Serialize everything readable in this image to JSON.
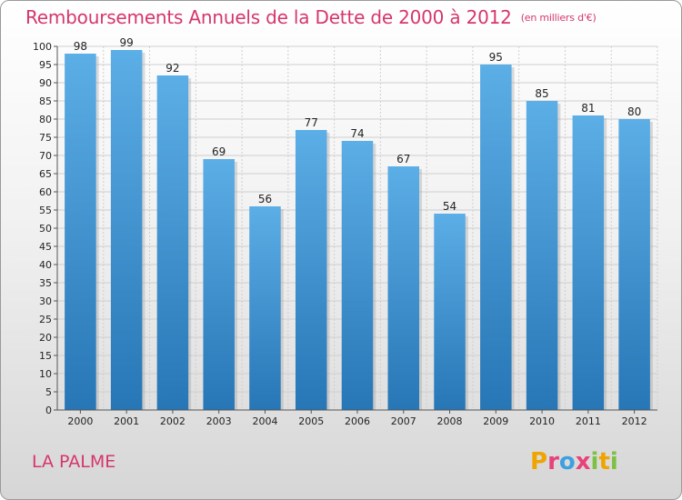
{
  "header": {
    "title": "Remboursements Annuels de la Dette de 2000 à 2012",
    "unit": "(en milliers d'€)"
  },
  "footer": {
    "commune": "LA PALME",
    "logo": [
      {
        "ch": "P",
        "color": "#f0a400"
      },
      {
        "ch": "r",
        "color": "#e8417c"
      },
      {
        "ch": "o",
        "color": "#3ea0e0"
      },
      {
        "ch": "x",
        "color": "#e8417c"
      },
      {
        "ch": "i",
        "color": "#7cc142"
      },
      {
        "ch": "t",
        "color": "#f0a400"
      },
      {
        "ch": "i",
        "color": "#7cc142"
      }
    ]
  },
  "chart_data": {
    "type": "bar",
    "title": "Remboursements Annuels de la Dette de 2000 à 2012",
    "categories": [
      "2000",
      "2001",
      "2002",
      "2003",
      "2004",
      "2005",
      "2006",
      "2007",
      "2008",
      "2009",
      "2010",
      "2011",
      "2012"
    ],
    "values": [
      98,
      99,
      92,
      69,
      56,
      77,
      74,
      67,
      54,
      95,
      85,
      81,
      80
    ],
    "ylim": [
      0,
      100
    ],
    "yticks": [
      0,
      5,
      10,
      15,
      20,
      25,
      30,
      35,
      40,
      45,
      50,
      55,
      60,
      65,
      70,
      75,
      80,
      85,
      90,
      95,
      100
    ],
    "grid": true,
    "colors": {
      "bar_top": "#5caee6",
      "bar_bottom": "#2776b6",
      "grid": "#cfcfcf",
      "text": "#d6366e"
    }
  }
}
